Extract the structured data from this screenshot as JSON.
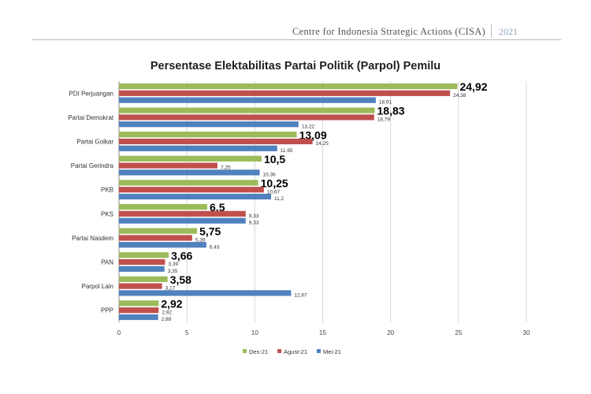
{
  "header": {
    "organization": "Centre for Indonesia Strategic Actions (CISA)",
    "year": "2021"
  },
  "colors": {
    "des21": "#9bbb59",
    "agust21": "#c0504d",
    "mei21": "#4f81bd",
    "grid": "#d8d8d8"
  },
  "chart_data": {
    "type": "bar",
    "orientation": "horizontal",
    "title": "Persentase Elektabilitas Partai Politik (Parpol) Pemilu",
    "categories": [
      "PDI Perjuangan",
      "Partai Demokrat",
      "Partai Golkar",
      "Partai Gerindra",
      "PKB",
      "PKS",
      "Partai Nasdem",
      "PAN",
      "Parpol Lain",
      "PPP"
    ],
    "series": [
      {
        "name": "Des-21",
        "values": [
          24.92,
          18.83,
          13.09,
          10.5,
          10.25,
          6.5,
          5.75,
          3.66,
          3.58,
          2.92
        ],
        "labels": [
          "24,92",
          "18,83",
          "13,09",
          "10,5",
          "10,25",
          "6,5",
          "5,75",
          "3,66",
          "3,58",
          "2,92"
        ]
      },
      {
        "name": "Agust-21",
        "values": [
          24.38,
          18.79,
          14.25,
          7.25,
          10.67,
          9.33,
          5.39,
          3.39,
          3.17,
          2.92
        ],
        "labels": [
          "24,38",
          "18,79",
          "14,25",
          "7,25",
          "10,67",
          "9,33",
          "5,39",
          "3,39",
          "3,17",
          "2,92"
        ]
      },
      {
        "name": "Mei-21",
        "values": [
          18.91,
          13.22,
          11.65,
          10.36,
          11.2,
          9.33,
          6.43,
          3.35,
          12.67,
          2.88
        ],
        "labels": [
          "18,91",
          "13,22",
          "11,65",
          "10,36",
          "11,2",
          "9,33",
          "6,43",
          "3,35",
          "12,67",
          "2,88"
        ]
      }
    ],
    "xlim": [
      0,
      30
    ],
    "xticks": [
      "0",
      "5",
      "10",
      "15",
      "20",
      "25",
      "30"
    ],
    "xtick_values": [
      0,
      5,
      10,
      15,
      20,
      25,
      30
    ],
    "grid": true,
    "legend_position": "bottom"
  }
}
